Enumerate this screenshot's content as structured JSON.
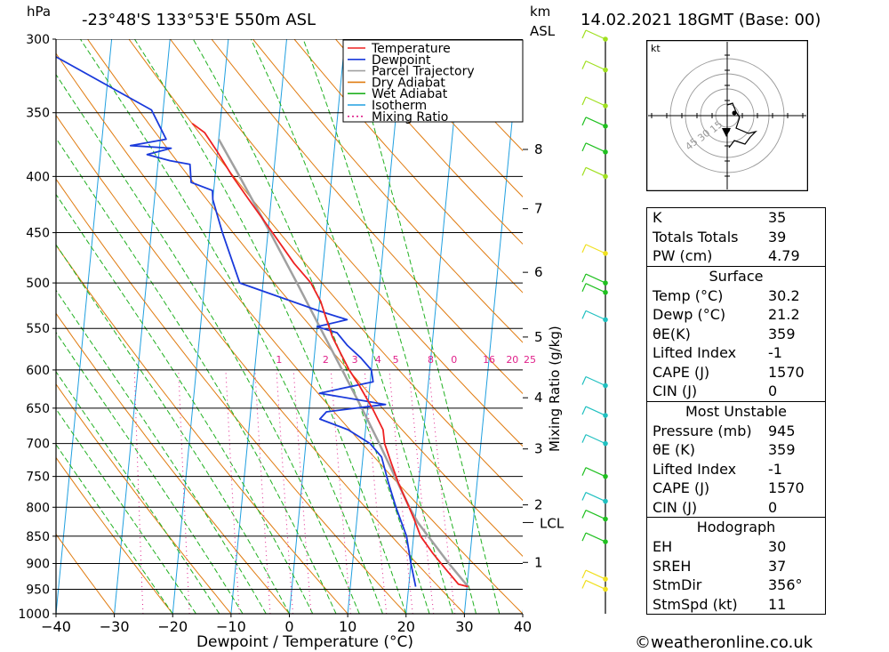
{
  "header": {
    "pressure_unit": "hPa",
    "location": "-23°48'S  133°53'E  550m  ASL",
    "km_label": "km",
    "asl_label": "ASL",
    "datetime": "14.02.2021  18GMT  (Base: 00)"
  },
  "colors": {
    "temperature": "#ee2222",
    "dewpoint": "#1a3adb",
    "parcel": "#a0a0a0",
    "dry_adiabat": "#e07b10",
    "wet_adiabat": "#20b020",
    "isotherm": "#20a0e0",
    "mixing_ratio": "#e0208a",
    "hodograph_winds": "#000000"
  },
  "chart_data": {
    "type": "skew-t",
    "xlabel": "Dewpoint / Temperature (°C)",
    "ylabel_right": "Mixing Ratio (g/kg)",
    "x_ticks": [
      -40,
      -30,
      -20,
      -10,
      0,
      10,
      20,
      30,
      40
    ],
    "pressure_levels": [
      300,
      350,
      400,
      450,
      500,
      550,
      600,
      650,
      700,
      750,
      800,
      850,
      900,
      950,
      1000
    ],
    "height_km_ticks": [
      {
        "label": "8",
        "p": 378
      },
      {
        "label": "7",
        "p": 428
      },
      {
        "label": "6",
        "p": 489
      },
      {
        "label": "5",
        "p": 560
      },
      {
        "label": "4",
        "p": 636
      },
      {
        "label": "3",
        "p": 708
      },
      {
        "label": "2",
        "p": 796
      },
      {
        "label": "1",
        "p": 898
      }
    ],
    "lcl": {
      "label": "LCL",
      "p": 826
    },
    "mixing_ratio_labels": [
      {
        "label": "1",
        "t": -6
      },
      {
        "label": "2",
        "t": 2
      },
      {
        "label": "3",
        "t": 7
      },
      {
        "label": "4",
        "t": 11
      },
      {
        "label": "5",
        "t": 14
      },
      {
        "label": "8",
        "t": 20
      },
      {
        "label": "0",
        "t": 24
      },
      {
        "label": "16",
        "t": 30
      },
      {
        "label": "20",
        "t": 34
      },
      {
        "label": "25",
        "t": 37
      }
    ],
    "mixing_ratio_label_p": 587,
    "legend": [
      {
        "name": "Temperature",
        "color": "#ee2222",
        "dash": false
      },
      {
        "name": "Dewpoint",
        "color": "#1a3adb",
        "dash": false
      },
      {
        "name": "Parcel Trajectory",
        "color": "#a0a0a0",
        "dash": false
      },
      {
        "name": "Dry Adiabat",
        "color": "#e07b10",
        "dash": false
      },
      {
        "name": "Wet Adiabat",
        "color": "#20b020",
        "dash": false
      },
      {
        "name": "Isotherm",
        "color": "#20a0e0",
        "dash": false
      },
      {
        "name": "Mixing Ratio",
        "color": "#e0208a",
        "dash": true
      }
    ],
    "series": [
      {
        "name": "Temperature",
        "points": [
          [
            945,
            30.2
          ],
          [
            940,
            28.5
          ],
          [
            910,
            26.0
          ],
          [
            880,
            23.5
          ],
          [
            850,
            21.2
          ],
          [
            820,
            19.8
          ],
          [
            790,
            18.2
          ],
          [
            760,
            16.5
          ],
          [
            730,
            15.0
          ],
          [
            700,
            13.5
          ],
          [
            680,
            13.0
          ],
          [
            650,
            10.8
          ],
          [
            620,
            8.2
          ],
          [
            600,
            6.2
          ],
          [
            580,
            4.5
          ],
          [
            560,
            2.8
          ],
          [
            540,
            1.5
          ],
          [
            520,
            0.2
          ],
          [
            500,
            -1.8
          ],
          [
            480,
            -5.0
          ],
          [
            450,
            -9.2
          ],
          [
            420,
            -13.8
          ],
          [
            400,
            -17.0
          ],
          [
            380,
            -20.0
          ],
          [
            365,
            -22.5
          ],
          [
            358,
            -24.8
          ]
        ]
      },
      {
        "name": "Dewpoint",
        "points": [
          [
            945,
            21.2
          ],
          [
            900,
            20.0
          ],
          [
            850,
            18.8
          ],
          [
            800,
            16.5
          ],
          [
            760,
            14.8
          ],
          [
            720,
            13.2
          ],
          [
            700,
            11.0
          ],
          [
            690,
            9.0
          ],
          [
            680,
            7.0
          ],
          [
            665,
            2.0
          ],
          [
            655,
            3.0
          ],
          [
            645,
            13.0
          ],
          [
            630,
            1.5
          ],
          [
            615,
            10.5
          ],
          [
            600,
            10.0
          ],
          [
            585,
            8.0
          ],
          [
            570,
            5.5
          ],
          [
            555,
            3.5
          ],
          [
            548,
            0.0
          ],
          [
            540,
            5.0
          ],
          [
            530,
            0.0
          ],
          [
            500,
            -14.0
          ],
          [
            450,
            -17.8
          ],
          [
            420,
            -20.0
          ],
          [
            412,
            -20.2
          ],
          [
            405,
            -24.0
          ],
          [
            390,
            -24.5
          ],
          [
            387,
            -28.0
          ],
          [
            382,
            -32.0
          ],
          [
            377,
            -28.0
          ],
          [
            375,
            -35.0
          ],
          [
            370,
            -29.0
          ],
          [
            348,
            -32.0
          ],
          [
            300,
            -55.0
          ]
        ]
      },
      {
        "name": "Parcel Trajectory",
        "points": [
          [
            945,
            30.2
          ],
          [
            900,
            26.5
          ],
          [
            850,
            22.5
          ],
          [
            826,
            20.5
          ],
          [
            800,
            18.8
          ],
          [
            750,
            15.8
          ],
          [
            700,
            12.6
          ],
          [
            650,
            9.0
          ],
          [
            600,
            5.0
          ],
          [
            550,
            0.6
          ],
          [
            500,
            -4.2
          ],
          [
            450,
            -9.6
          ],
          [
            400,
            -15.8
          ],
          [
            370,
            -20.0
          ]
        ]
      }
    ],
    "winds": [
      {
        "p": 950,
        "color": "#f0e020"
      },
      {
        "p": 930,
        "color": "#f0e020"
      },
      {
        "p": 860,
        "color": "#20c020"
      },
      {
        "p": 820,
        "color": "#20c020"
      },
      {
        "p": 790,
        "color": "#20c0c0"
      },
      {
        "p": 750,
        "color": "#20c020"
      },
      {
        "p": 700,
        "color": "#20c0c0"
      },
      {
        "p": 660,
        "color": "#20c0c0"
      },
      {
        "p": 620,
        "color": "#20c0c0"
      },
      {
        "p": 540,
        "color": "#20c0c0"
      },
      {
        "p": 510,
        "color": "#20c020"
      },
      {
        "p": 500,
        "color": "#20c020"
      },
      {
        "p": 470,
        "color": "#f0e020"
      },
      {
        "p": 400,
        "color": "#a0e020"
      },
      {
        "p": 380,
        "color": "#20c020"
      },
      {
        "p": 360,
        "color": "#20c020"
      },
      {
        "p": 345,
        "color": "#a0e020"
      },
      {
        "p": 320,
        "color": "#a0e020"
      },
      {
        "p": 300,
        "color": "#a0e020"
      }
    ]
  },
  "hodograph": {
    "unit_label": "kt",
    "ring_labels": [
      "15",
      "30",
      "45"
    ]
  },
  "indices": [
    {
      "label": "K",
      "value": "35"
    },
    {
      "label": "Totals Totals",
      "value": "39"
    },
    {
      "label": "PW (cm)",
      "value": "4.79"
    }
  ],
  "surface": {
    "title": "Surface",
    "rows": [
      {
        "label": "Temp (°C)",
        "value": "30.2"
      },
      {
        "label": "Dewp (°C)",
        "value": "21.2"
      },
      {
        "label": "θE(K)",
        "value": "359"
      },
      {
        "label": "Lifted Index",
        "value": "-1"
      },
      {
        "label": "CAPE (J)",
        "value": "1570"
      },
      {
        "label": "CIN (J)",
        "value": "0"
      }
    ]
  },
  "most_unstable": {
    "title": "Most Unstable",
    "rows": [
      {
        "label": "Pressure (mb)",
        "value": "945"
      },
      {
        "label": "θE (K)",
        "value": "359"
      },
      {
        "label": "Lifted Index",
        "value": "-1"
      },
      {
        "label": "CAPE (J)",
        "value": "1570"
      },
      {
        "label": "CIN (J)",
        "value": "0"
      }
    ]
  },
  "hodograph_table": {
    "title": "Hodograph",
    "rows": [
      {
        "label": "EH",
        "value": "30"
      },
      {
        "label": "SREH",
        "value": "37"
      },
      {
        "label": "StmDir",
        "value": "356°"
      },
      {
        "label": "StmSpd (kt)",
        "value": "11"
      }
    ]
  },
  "credit": "©weatheronline.co.uk"
}
